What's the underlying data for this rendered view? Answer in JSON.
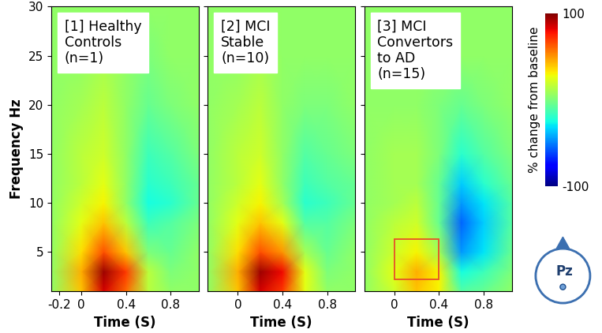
{
  "chart_data": [
    {
      "type": "heatmap",
      "title": "[1] Healthy\nControls\n(n=1)",
      "xlabel": "Time (S)",
      "ylabel": "Frequency Hz",
      "x": [
        -0.27,
        0,
        0.2,
        0.4,
        0.6,
        0.8,
        1.05
      ],
      "y": [
        1,
        3,
        5,
        8,
        10,
        12,
        15,
        20,
        25,
        30
      ],
      "cells": [
        [
          5,
          40,
          85,
          60,
          15,
          5,
          5
        ],
        [
          5,
          45,
          95,
          70,
          15,
          0,
          5
        ],
        [
          5,
          35,
          65,
          40,
          0,
          -5,
          5
        ],
        [
          5,
          25,
          40,
          15,
          -15,
          -10,
          0
        ],
        [
          5,
          20,
          30,
          5,
          -25,
          -20,
          -5
        ],
        [
          5,
          15,
          25,
          5,
          -20,
          -15,
          -5
        ],
        [
          5,
          15,
          20,
          5,
          -15,
          -10,
          0
        ],
        [
          5,
          10,
          15,
          5,
          -5,
          0,
          5
        ],
        [
          5,
          5,
          10,
          5,
          0,
          5,
          5
        ],
        [
          5,
          5,
          5,
          5,
          5,
          5,
          5
        ]
      ],
      "xlim": [
        -0.27,
        1.05
      ],
      "ylim": [
        1,
        30
      ],
      "xticks": [
        -0.2,
        0,
        0.4,
        0.8
      ],
      "yticks": [
        5,
        10,
        15,
        20,
        25,
        30
      ]
    },
    {
      "type": "heatmap",
      "title": "[2] MCI\nStable\n(n=10)",
      "xlabel": "Time (S)",
      "x": [
        -0.27,
        0,
        0.2,
        0.4,
        0.6,
        0.8,
        1.05
      ],
      "y": [
        1,
        3,
        5,
        8,
        10,
        12,
        15,
        20,
        25,
        30
      ],
      "cells": [
        [
          5,
          40,
          85,
          70,
          25,
          5,
          5
        ],
        [
          5,
          45,
          95,
          80,
          25,
          0,
          5
        ],
        [
          5,
          35,
          65,
          50,
          10,
          -5,
          5
        ],
        [
          5,
          25,
          40,
          25,
          -10,
          -10,
          0
        ],
        [
          5,
          20,
          30,
          10,
          -20,
          -15,
          -5
        ],
        [
          5,
          15,
          25,
          5,
          -15,
          -10,
          -5
        ],
        [
          5,
          15,
          20,
          5,
          -10,
          -5,
          0
        ],
        [
          5,
          10,
          15,
          5,
          0,
          0,
          5
        ],
        [
          5,
          5,
          10,
          5,
          5,
          5,
          5
        ],
        [
          5,
          5,
          5,
          5,
          5,
          5,
          5
        ]
      ],
      "xlim": [
        -0.27,
        1.05
      ],
      "ylim": [
        1,
        30
      ],
      "xticks": [
        0,
        0.4,
        0.8
      ],
      "yticks": [
        5,
        10,
        15,
        20,
        25,
        30
      ],
      "tick_labels": "x"
    },
    {
      "type": "heatmap",
      "title": "[3] MCI\nConvertors\nto AD\n(n=15)",
      "xlabel": "Time (S)",
      "x": [
        -0.27,
        0,
        0.2,
        0.4,
        0.6,
        0.8,
        1.05
      ],
      "y": [
        1,
        3,
        5,
        8,
        10,
        12,
        15,
        20,
        25,
        30
      ],
      "cells": [
        [
          5,
          20,
          40,
          30,
          -10,
          -5,
          5
        ],
        [
          5,
          25,
          45,
          30,
          -25,
          -15,
          0
        ],
        [
          5,
          20,
          30,
          10,
          -45,
          -30,
          -5
        ],
        [
          5,
          15,
          20,
          -5,
          -55,
          -35,
          -10
        ],
        [
          5,
          10,
          15,
          -5,
          -45,
          -30,
          -10
        ],
        [
          5,
          10,
          10,
          -5,
          -35,
          -20,
          -5
        ],
        [
          5,
          10,
          10,
          0,
          -20,
          -10,
          0
        ],
        [
          5,
          5,
          5,
          0,
          -5,
          0,
          5
        ],
        [
          5,
          5,
          5,
          5,
          5,
          5,
          5
        ],
        [
          5,
          5,
          5,
          5,
          5,
          5,
          5
        ]
      ],
      "xlim": [
        -0.27,
        1.05
      ],
      "ylim": [
        1,
        30
      ],
      "xticks": [
        0,
        0.4,
        0.8
      ],
      "yticks": [
        5,
        10,
        15,
        20,
        25,
        30
      ],
      "tick_labels": "x",
      "highlight": {
        "x": [
          0,
          0.4
        ],
        "y": [
          2.2,
          6.3
        ],
        "color": "#e8502a"
      }
    }
  ],
  "colorbar": {
    "label": "% change from baseline",
    "range": [
      -100,
      100
    ],
    "ticks": [
      100,
      -100
    ]
  },
  "electrode": "Pz"
}
